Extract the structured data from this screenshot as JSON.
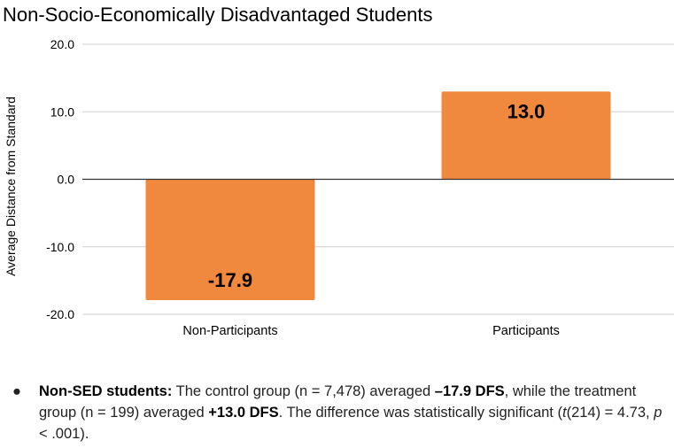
{
  "chart_data": {
    "type": "bar",
    "title": "Non-Socio-Economically Disadvantaged Students",
    "xlabel": "",
    "ylabel": "Average Distance from Standard",
    "categories": [
      "Non-Participants",
      "Participants"
    ],
    "values": [
      -17.9,
      13.0
    ],
    "data_labels": [
      "-17.9",
      "13.0"
    ],
    "ylim": [
      -20,
      20
    ],
    "yticks": [
      20,
      10,
      0,
      -10,
      -20
    ],
    "ytick_labels": [
      "20.0",
      "10.0",
      "0.0",
      "-10.0",
      "-20.0"
    ],
    "grid": true,
    "legend": "none",
    "bar_color": "#f0883e"
  },
  "note": {
    "bullet": "●",
    "lead": "Non-SED students:",
    "t1": " The control group (n = 7,478) averaged ",
    "control_value": "–17.9 DFS",
    "t2": ", while the treatment group (n = 199) averaged ",
    "treatment_value": "+13.0 DFS",
    "t3": ". The difference was statistically significant (",
    "t_symbol": "t",
    "t_df": "(214) = 4.73, ",
    "p_symbol": "p",
    "p_value": " < .001)."
  }
}
